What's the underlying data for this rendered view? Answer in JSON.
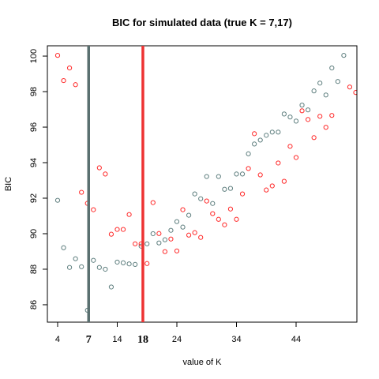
{
  "chart_data": {
    "type": "scatter",
    "title": "BIC for simulated data (true K = 7,17)",
    "xlabel": "value of K",
    "ylabel": "BIC",
    "x": [
      4,
      5,
      6,
      7,
      8,
      9,
      10,
      11,
      12,
      13,
      14,
      15,
      16,
      17,
      18,
      19,
      20,
      21,
      22,
      23,
      24,
      25,
      26,
      27,
      28,
      29,
      30,
      31,
      32,
      33,
      34,
      35,
      36,
      37,
      38,
      39,
      40,
      41,
      42,
      43,
      44,
      45,
      46,
      47,
      48,
      49,
      50,
      51,
      52,
      53,
      54
    ],
    "series": [
      {
        "name": "gray",
        "color": "#5f7f7f",
        "values": [
          91.88,
          89.21,
          88.1,
          88.59,
          88.14,
          85.69,
          88.5,
          88.1,
          88.0,
          87.0,
          88.4,
          88.36,
          88.3,
          88.27,
          89.3,
          89.43,
          90.0,
          89.48,
          89.66,
          90.19,
          90.68,
          90.37,
          91.04,
          92.24,
          91.97,
          93.22,
          91.7,
          93.22,
          92.5,
          92.55,
          93.36,
          93.36,
          94.5,
          95.05,
          95.27,
          95.54,
          95.72,
          95.72,
          96.74,
          96.57,
          96.34,
          97.24,
          96.97,
          98.04,
          98.48,
          97.81,
          99.33,
          98.57,
          100.04,
          null,
          null
        ]
      },
      {
        "name": "red",
        "color": "#ff2a2a",
        "values": [
          100.04,
          98.62,
          99.33,
          98.39,
          92.33,
          91.71,
          91.35,
          93.71,
          93.36,
          89.97,
          90.24,
          90.24,
          91.08,
          89.43,
          89.43,
          88.32,
          91.75,
          90.01,
          88.99,
          89.7,
          89.03,
          91.35,
          89.92,
          90.06,
          89.79,
          91.84,
          91.13,
          90.81,
          90.5,
          91.39,
          90.81,
          92.24,
          93.67,
          95.63,
          93.31,
          92.46,
          92.69,
          93.98,
          92.95,
          94.92,
          94.29,
          96.92,
          96.43,
          95.41,
          96.61,
          95.99,
          96.66,
          null,
          null,
          98.26,
          97.95
        ]
      }
    ],
    "vlines": [
      {
        "x": 9.2,
        "label": "7",
        "color": "#5a7070"
      },
      {
        "x": 18.3,
        "label": "18",
        "color": "#ee3333"
      }
    ],
    "xlim": [
      2.28,
      54.2
    ],
    "ylim": [
      85.02,
      100.58
    ],
    "xticks": [
      4,
      14,
      24,
      34,
      44
    ],
    "yticks": [
      86,
      88,
      90,
      92,
      94,
      96,
      98,
      100
    ]
  }
}
